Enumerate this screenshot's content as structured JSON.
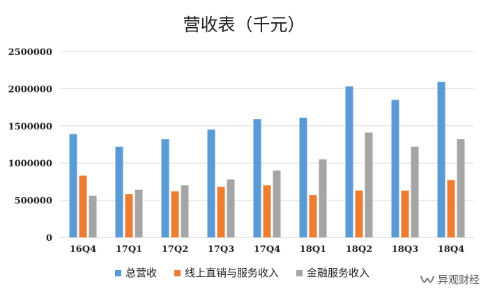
{
  "chart_data": {
    "type": "bar",
    "title": "营收表（千元）",
    "categories": [
      "16Q4",
      "17Q1",
      "17Q2",
      "17Q3",
      "17Q4",
      "18Q1",
      "18Q2",
      "18Q3",
      "18Q4"
    ],
    "series": [
      {
        "name": "总营收",
        "color": "#5B9BD5",
        "values": [
          1390000,
          1220000,
          1320000,
          1450000,
          1590000,
          1610000,
          2030000,
          1850000,
          2090000
        ]
      },
      {
        "name": "线上直销与服务收入",
        "color": "#ED7D31",
        "values": [
          830000,
          580000,
          620000,
          680000,
          700000,
          570000,
          630000,
          630000,
          770000
        ]
      },
      {
        "name": "金融服务收入",
        "color": "#A5A5A5",
        "values": [
          560000,
          640000,
          700000,
          780000,
          900000,
          1050000,
          1410000,
          1220000,
          1320000
        ]
      }
    ],
    "yticks": [
      "0",
      "500000",
      "1000000",
      "1500000",
      "2000000",
      "2500000"
    ],
    "ylim": [
      0,
      2500000
    ],
    "grid": true,
    "legend_position": "bottom"
  },
  "watermark": {
    "text": "异观财经",
    "icon": "wechat-channel-icon"
  }
}
